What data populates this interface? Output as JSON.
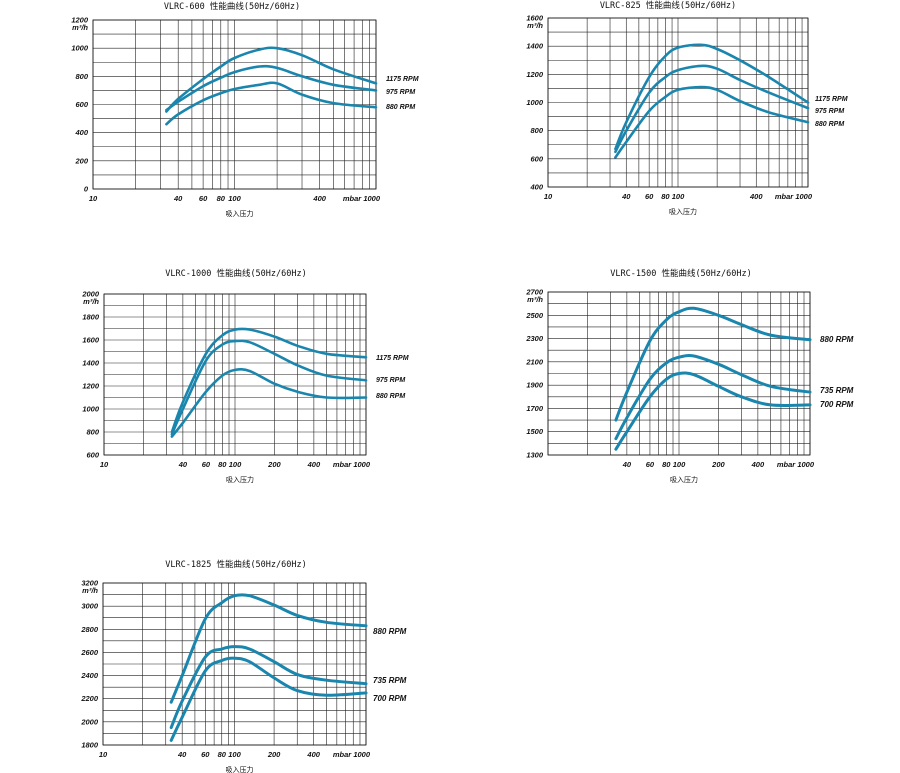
{
  "colors": {
    "curve": "#1a86ae",
    "grid": "#222222"
  },
  "chart_data": [
    {
      "type": "line",
      "title": "VLRC-600 性能曲线(50Hz/60Hz)",
      "xlabel": "吸入压力",
      "ylabel": "m³/h",
      "x_scale": "log",
      "xlim": [
        10,
        1000
      ],
      "ylim": [
        0,
        1200
      ],
      "x_ticks": [
        "10",
        "40",
        "60",
        "80",
        "100",
        "400",
        "mbar 1000"
      ],
      "y_ticks": [
        "1200",
        "1000",
        "800",
        "600",
        "400",
        "200",
        "0"
      ],
      "series": [
        {
          "name": "1175 RPM",
          "x": [
            33,
            40,
            60,
            80,
            100,
            150,
            200,
            300,
            500,
            1000
          ],
          "y": [
            550,
            640,
            780,
            870,
            930,
            990,
            1000,
            950,
            850,
            750
          ]
        },
        {
          "name": "975 RPM",
          "x": [
            33,
            40,
            60,
            80,
            100,
            150,
            200,
            300,
            500,
            1000
          ],
          "y": [
            560,
            620,
            730,
            790,
            830,
            870,
            860,
            800,
            740,
            700
          ]
        },
        {
          "name": "880 RPM",
          "x": [
            33,
            40,
            60,
            80,
            100,
            150,
            200,
            300,
            500,
            1000
          ],
          "y": [
            460,
            530,
            630,
            680,
            710,
            740,
            750,
            670,
            610,
            580
          ]
        }
      ]
    },
    {
      "type": "line",
      "title": "VLRC-825 性能曲线(50Hz/60Hz)",
      "xlabel": "吸入压力",
      "ylabel": "m³/h",
      "x_scale": "log",
      "xlim": [
        10,
        1000
      ],
      "ylim": [
        400,
        1600
      ],
      "x_ticks": [
        "10",
        "40",
        "60",
        "80",
        "100",
        "400",
        "mbar 1000"
      ],
      "y_ticks": [
        "1600",
        "1400",
        "1200",
        "1000",
        "800",
        "600",
        "400"
      ],
      "series": [
        {
          "name": "1175 RPM",
          "x": [
            33,
            40,
            60,
            80,
            100,
            150,
            200,
            300,
            500,
            1000
          ],
          "y": [
            670,
            860,
            1180,
            1330,
            1390,
            1410,
            1380,
            1300,
            1180,
            1000
          ]
        },
        {
          "name": "975 RPM",
          "x": [
            33,
            40,
            60,
            80,
            100,
            150,
            200,
            300,
            500,
            1000
          ],
          "y": [
            650,
            800,
            1070,
            1180,
            1230,
            1260,
            1240,
            1160,
            1070,
            960
          ]
        },
        {
          "name": "880 RPM",
          "x": [
            33,
            40,
            60,
            80,
            100,
            150,
            200,
            300,
            500,
            1000
          ],
          "y": [
            610,
            720,
            940,
            1040,
            1090,
            1110,
            1090,
            1010,
            930,
            860
          ]
        }
      ]
    },
    {
      "type": "line",
      "title": "VLRC-1000 性能曲线(50Hz/60Hz)",
      "xlabel": "吸入压力",
      "ylabel": "m³/h",
      "x_scale": "log",
      "xlim": [
        10,
        1000
      ],
      "ylim": [
        600,
        2000
      ],
      "x_ticks": [
        "10",
        "40",
        "60",
        "80",
        "100",
        "200",
        "400",
        "mbar 1000"
      ],
      "y_ticks": [
        "2000",
        "1800",
        "1600",
        "1400",
        "1200",
        "1000",
        "800",
        "600"
      ],
      "series": [
        {
          "name": "1175 RPM",
          "x": [
            33,
            40,
            60,
            80,
            100,
            130,
            200,
            300,
            500,
            1000
          ],
          "y": [
            800,
            1060,
            1480,
            1640,
            1690,
            1690,
            1630,
            1550,
            1480,
            1450
          ]
        },
        {
          "name": "975 RPM",
          "x": [
            33,
            40,
            60,
            80,
            100,
            130,
            200,
            300,
            500,
            1000
          ],
          "y": [
            780,
            1000,
            1420,
            1560,
            1590,
            1580,
            1480,
            1380,
            1290,
            1250
          ]
        },
        {
          "name": "880 RPM",
          "x": [
            33,
            40,
            60,
            80,
            100,
            130,
            200,
            300,
            500,
            1000
          ],
          "y": [
            760,
            880,
            1150,
            1290,
            1340,
            1330,
            1220,
            1150,
            1100,
            1100
          ]
        }
      ]
    },
    {
      "type": "line",
      "title": "VLRC-1500 性能曲线(50Hz/60Hz)",
      "xlabel": "吸入压力",
      "ylabel": "m³/h",
      "x_scale": "log",
      "xlim": [
        10,
        1000
      ],
      "ylim": [
        1300,
        2700
      ],
      "x_ticks": [
        "40",
        "60",
        "80",
        "100",
        "200",
        "400",
        "mbar 1000"
      ],
      "y_ticks": [
        "2700",
        "2500",
        "2300",
        "2100",
        "1900",
        "1700",
        "1500",
        "1300"
      ],
      "series": [
        {
          "name": "880 RPM",
          "x": [
            33,
            40,
            60,
            80,
            100,
            130,
            200,
            300,
            500,
            1000
          ],
          "y": [
            1600,
            1840,
            2280,
            2460,
            2530,
            2560,
            2500,
            2420,
            2330,
            2290
          ]
        },
        {
          "name": "735 RPM",
          "x": [
            33,
            40,
            60,
            80,
            100,
            130,
            200,
            300,
            500,
            1000
          ],
          "y": [
            1440,
            1620,
            1950,
            2090,
            2140,
            2150,
            2080,
            1990,
            1890,
            1840
          ]
        },
        {
          "name": "700 RPM",
          "x": [
            33,
            40,
            60,
            80,
            100,
            130,
            200,
            300,
            500,
            1000
          ],
          "y": [
            1350,
            1500,
            1800,
            1950,
            2000,
            1990,
            1890,
            1800,
            1730,
            1730
          ]
        }
      ]
    },
    {
      "type": "line",
      "title": "VLRC-1825 性能曲线(50Hz/60Hz)",
      "xlabel": "吸入压力",
      "ylabel": "m³/h",
      "x_scale": "log",
      "xlim": [
        10,
        1000
      ],
      "ylim": [
        1800,
        3200
      ],
      "x_ticks": [
        "10",
        "40",
        "60",
        "80",
        "100",
        "200",
        "400",
        "mbar 1000"
      ],
      "y_ticks": [
        "3200",
        "3000",
        "2800",
        "2600",
        "2400",
        "2200",
        "2000",
        "1800"
      ],
      "series": [
        {
          "name": "880 RPM",
          "x": [
            33,
            40,
            60,
            80,
            100,
            130,
            200,
            300,
            500,
            1000
          ],
          "y": [
            2170,
            2400,
            2890,
            3030,
            3090,
            3090,
            3010,
            2920,
            2860,
            2830
          ]
        },
        {
          "name": "735 RPM",
          "x": [
            33,
            40,
            60,
            80,
            100,
            130,
            200,
            300,
            500,
            1000
          ],
          "y": [
            1950,
            2180,
            2560,
            2630,
            2650,
            2630,
            2520,
            2410,
            2360,
            2330
          ]
        },
        {
          "name": "700 RPM",
          "x": [
            33,
            40,
            60,
            80,
            100,
            130,
            200,
            300,
            500,
            1000
          ],
          "y": [
            1840,
            2040,
            2440,
            2530,
            2550,
            2520,
            2380,
            2270,
            2230,
            2250
          ]
        }
      ]
    }
  ]
}
